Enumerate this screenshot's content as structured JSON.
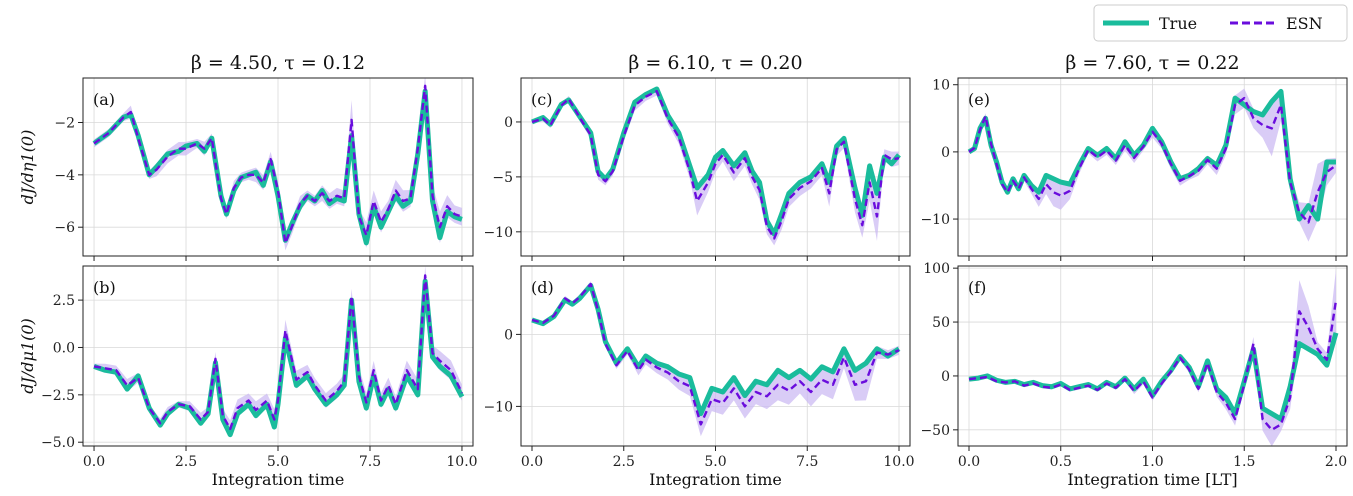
{
  "legend": {
    "entries": [
      {
        "label": "True",
        "color": "#1ABC9C",
        "style": "solid"
      },
      {
        "label": "ESN",
        "color": "#6A0DDD",
        "style": "dashed"
      }
    ],
    "placement": "top-right"
  },
  "colors": {
    "true": "#1ABC9C",
    "esn": "#6A0DDD",
    "band": "#C9B6F2",
    "grid": "#d9d9d9"
  },
  "row_ylabels": [
    "dJ/dη1(0)",
    "dJ/dμ1(0)"
  ],
  "chart_data": [
    {
      "type": "line",
      "id": "a",
      "panel_label": "(a)",
      "col": 0,
      "row": 0,
      "title": "β = 4.50,  τ = 0.12",
      "xlabel": "",
      "ylabel": "dJ/dη1(0)",
      "xlim": [
        -0.3,
        10.3
      ],
      "ylim": [
        -7.1,
        -0.3
      ],
      "xticks": [
        0,
        2.5,
        5,
        7.5,
        10
      ],
      "xtick_labels": [
        "",
        "",
        "",
        "",
        ""
      ],
      "yticks": [
        -6,
        -4,
        -2
      ],
      "ytick_labels": [
        "−6",
        "−4",
        "−2"
      ],
      "grid": true,
      "band_scale": 0.05,
      "x": [
        0,
        0.4,
        0.8,
        1.0,
        1.2,
        1.5,
        1.7,
        2.0,
        2.3,
        2.5,
        2.8,
        3.0,
        3.2,
        3.45,
        3.6,
        3.8,
        4.0,
        4.2,
        4.4,
        4.6,
        4.8,
        5.0,
        5.2,
        5.4,
        5.6,
        5.8,
        6.0,
        6.2,
        6.4,
        6.6,
        6.8,
        7.0,
        7.2,
        7.4,
        7.6,
        7.8,
        8.0,
        8.2,
        8.4,
        8.6,
        8.8,
        9.0,
        9.2,
        9.4,
        9.6,
        9.8,
        10.0
      ],
      "series": [
        {
          "name": "True",
          "values": [
            -2.8,
            -2.4,
            -1.8,
            -1.7,
            -2.5,
            -4.0,
            -3.7,
            -3.2,
            -3.1,
            -2.9,
            -2.8,
            -3.1,
            -2.6,
            -4.8,
            -5.5,
            -4.6,
            -4.1,
            -4.0,
            -3.9,
            -4.4,
            -3.5,
            -4.8,
            -6.5,
            -5.8,
            -5.2,
            -4.8,
            -5.0,
            -4.6,
            -5.1,
            -4.9,
            -5.0,
            -2.5,
            -5.5,
            -6.6,
            -5.2,
            -6.0,
            -5.4,
            -4.8,
            -5.2,
            -5.0,
            -3.2,
            -0.8,
            -5.0,
            -6.4,
            -5.4,
            -5.6,
            -5.7
          ]
        },
        {
          "name": "ESN",
          "values": [
            -2.8,
            -2.4,
            -1.8,
            -1.6,
            -2.6,
            -4.0,
            -3.8,
            -3.3,
            -3.0,
            -3.0,
            -2.8,
            -3.0,
            -2.6,
            -4.9,
            -5.5,
            -4.5,
            -4.1,
            -4.0,
            -4.0,
            -4.3,
            -3.4,
            -4.6,
            -6.6,
            -5.9,
            -5.1,
            -4.8,
            -5.0,
            -4.7,
            -5.0,
            -4.8,
            -4.9,
            -1.9,
            -5.6,
            -6.3,
            -5.0,
            -5.8,
            -5.3,
            -4.6,
            -5.0,
            -4.9,
            -3.0,
            -0.6,
            -4.8,
            -6.0,
            -5.2,
            -5.5,
            -5.6
          ]
        }
      ]
    },
    {
      "type": "line",
      "id": "c",
      "panel_label": "(c)",
      "col": 1,
      "row": 0,
      "title": "β = 6.10,  τ = 0.20",
      "xlabel": "",
      "ylabel": "",
      "xlim": [
        -0.3,
        10.3
      ],
      "ylim": [
        -12.2,
        4.0
      ],
      "xticks": [
        0,
        2.5,
        5,
        7.5,
        10
      ],
      "xtick_labels": [
        "",
        "",
        "",
        "",
        ""
      ],
      "yticks": [
        -10,
        -5,
        0
      ],
      "ytick_labels": [
        "−10",
        "−5",
        "0"
      ],
      "grid": true,
      "band_scale": 0.1,
      "x": [
        0,
        0.3,
        0.5,
        0.8,
        1.0,
        1.3,
        1.6,
        1.8,
        2.0,
        2.2,
        2.5,
        2.8,
        3.1,
        3.4,
        3.7,
        4.0,
        4.3,
        4.5,
        4.8,
        5.0,
        5.2,
        5.5,
        5.8,
        6.0,
        6.2,
        6.4,
        6.6,
        6.8,
        7.0,
        7.3,
        7.6,
        7.9,
        8.1,
        8.3,
        8.5,
        8.8,
        9.0,
        9.2,
        9.4,
        9.6,
        9.8,
        10.0
      ],
      "series": [
        {
          "name": "True",
          "values": [
            0.0,
            0.4,
            -0.2,
            1.6,
            2.0,
            0.5,
            -1.0,
            -4.5,
            -5.2,
            -4.3,
            -1.0,
            1.8,
            2.5,
            3.0,
            0.6,
            -1.0,
            -4.0,
            -6.0,
            -4.8,
            -3.2,
            -2.6,
            -4.0,
            -2.8,
            -4.5,
            -5.5,
            -9.0,
            -10.2,
            -8.4,
            -6.5,
            -5.5,
            -5.0,
            -3.8,
            -5.5,
            -2.2,
            -1.5,
            -6.0,
            -8.5,
            -4.0,
            -6.5,
            -3.2,
            -3.8,
            -3.0
          ]
        },
        {
          "name": "ESN",
          "values": [
            0.0,
            0.3,
            -0.3,
            1.5,
            2.1,
            0.4,
            -1.2,
            -4.8,
            -5.4,
            -4.5,
            -1.3,
            1.5,
            2.3,
            2.8,
            0.3,
            -1.4,
            -4.5,
            -7.2,
            -5.5,
            -3.8,
            -3.0,
            -4.6,
            -3.3,
            -5.0,
            -6.2,
            -9.5,
            -10.6,
            -9.0,
            -7.0,
            -6.0,
            -5.4,
            -4.2,
            -6.5,
            -2.5,
            -1.8,
            -7.0,
            -9.4,
            -5.5,
            -8.6,
            -3.0,
            -3.4,
            -3.3
          ]
        }
      ]
    },
    {
      "type": "line",
      "id": "e",
      "panel_label": "(e)",
      "col": 2,
      "row": 0,
      "title": "β = 7.60,  τ = 0.22",
      "xlabel": "",
      "ylabel": "",
      "xlim": [
        -0.06,
        2.06
      ],
      "ylim": [
        -15.5,
        11.0
      ],
      "xticks": [
        0,
        0.5,
        1.0,
        1.5,
        2.0
      ],
      "xtick_labels": [
        "",
        "",
        "",
        "",
        ""
      ],
      "yticks": [
        -10,
        0,
        10
      ],
      "ytick_labels": [
        "−10",
        "0",
        "10"
      ],
      "grid": true,
      "band_scale": 0.25,
      "x": [
        0,
        0.03,
        0.06,
        0.09,
        0.12,
        0.15,
        0.18,
        0.21,
        0.24,
        0.27,
        0.3,
        0.34,
        0.38,
        0.42,
        0.46,
        0.5,
        0.55,
        0.6,
        0.65,
        0.7,
        0.75,
        0.8,
        0.85,
        0.9,
        0.95,
        1.0,
        1.05,
        1.1,
        1.15,
        1.2,
        1.25,
        1.3,
        1.35,
        1.4,
        1.45,
        1.5,
        1.55,
        1.6,
        1.65,
        1.7,
        1.75,
        1.8,
        1.85,
        1.9,
        1.95,
        2.0
      ],
      "series": [
        {
          "name": "True",
          "values": [
            0.0,
            0.5,
            3.5,
            5.0,
            1.0,
            -1.5,
            -4.5,
            -6.0,
            -4.0,
            -5.5,
            -3.5,
            -5.0,
            -6.0,
            -3.5,
            -4.0,
            -4.5,
            -4.8,
            -2.0,
            0.5,
            -0.5,
            0.5,
            -1.0,
            1.5,
            -0.5,
            1.0,
            3.5,
            1.5,
            -1.5,
            -4.0,
            -3.5,
            -2.5,
            -1.0,
            -2.0,
            1.0,
            8.0,
            7.0,
            6.0,
            5.5,
            7.5,
            9.0,
            -4.0,
            -10.0,
            -8.0,
            -10.0,
            -1.5,
            -1.5
          ]
        },
        {
          "name": "ESN",
          "values": [
            0.0,
            0.6,
            3.3,
            5.3,
            1.2,
            -1.8,
            -4.8,
            -6.0,
            -4.3,
            -5.5,
            -3.8,
            -5.5,
            -7.0,
            -4.8,
            -6.0,
            -6.5,
            -5.8,
            -2.5,
            0.3,
            -0.8,
            0.2,
            -1.3,
            1.0,
            -0.9,
            0.8,
            3.0,
            1.2,
            -1.8,
            -4.3,
            -3.6,
            -2.8,
            -1.2,
            -2.5,
            0.5,
            7.0,
            8.0,
            5.0,
            4.0,
            3.5,
            7.0,
            -4.5,
            -9.0,
            -10.5,
            -6.0,
            -3.0,
            -2.0
          ]
        }
      ]
    },
    {
      "type": "line",
      "id": "b",
      "panel_label": "(b)",
      "col": 0,
      "row": 1,
      "title": "",
      "xlabel": "Integration time",
      "ylabel": "dJ/dμ1(0)",
      "xlim": [
        -0.3,
        10.3
      ],
      "ylim": [
        -5.2,
        4.3
      ],
      "xticks": [
        0,
        2.5,
        5,
        7.5,
        10
      ],
      "xtick_labels": [
        "0.0",
        "2.5",
        "5.0",
        "7.5",
        "10.0"
      ],
      "yticks": [
        -5.0,
        -2.5,
        0.0,
        2.5
      ],
      "ytick_labels": [
        "−5.0",
        "−2.5",
        "0.0",
        "2.5"
      ],
      "grid": true,
      "band_scale": 0.05,
      "x": [
        0,
        0.3,
        0.6,
        0.9,
        1.2,
        1.5,
        1.8,
        2.0,
        2.3,
        2.6,
        2.9,
        3.1,
        3.3,
        3.5,
        3.7,
        3.9,
        4.2,
        4.4,
        4.7,
        4.9,
        5.0,
        5.2,
        5.5,
        5.8,
        6.0,
        6.3,
        6.6,
        6.8,
        7.0,
        7.2,
        7.4,
        7.6,
        7.8,
        8.0,
        8.2,
        8.5,
        8.8,
        9.0,
        9.2,
        9.4,
        9.7,
        10.0
      ],
      "series": [
        {
          "name": "True",
          "values": [
            -1.0,
            -1.2,
            -1.3,
            -2.2,
            -1.5,
            -3.2,
            -4.1,
            -3.5,
            -3.0,
            -3.2,
            -4.0,
            -3.5,
            -0.8,
            -3.8,
            -4.6,
            -3.5,
            -3.0,
            -3.6,
            -3.0,
            -4.2,
            -3.0,
            0.5,
            -2.0,
            -1.5,
            -2.2,
            -3.0,
            -2.5,
            -2.0,
            2.5,
            -1.8,
            -3.2,
            -1.5,
            -3.0,
            -2.2,
            -3.2,
            -1.5,
            -2.5,
            3.5,
            -0.5,
            -1.0,
            -1.5,
            -2.6
          ]
        },
        {
          "name": "ESN",
          "values": [
            -1.0,
            -1.1,
            -1.2,
            -2.0,
            -1.6,
            -3.2,
            -4.0,
            -3.4,
            -3.0,
            -3.1,
            -3.8,
            -3.4,
            -0.6,
            -3.6,
            -4.3,
            -3.2,
            -2.8,
            -3.3,
            -2.8,
            -3.8,
            -2.8,
            0.9,
            -1.7,
            -1.3,
            -2.0,
            -2.8,
            -2.3,
            -1.8,
            2.7,
            -1.5,
            -2.9,
            -1.2,
            -2.8,
            -2.0,
            -3.0,
            -1.2,
            -2.2,
            3.8,
            -0.3,
            -0.7,
            -1.2,
            -2.4
          ]
        }
      ]
    },
    {
      "type": "line",
      "id": "d",
      "panel_label": "(d)",
      "col": 1,
      "row": 1,
      "title": "",
      "xlabel": "Integration time",
      "ylabel": "",
      "xlim": [
        -0.3,
        10.3
      ],
      "ylim": [
        -15.5,
        9.5
      ],
      "xticks": [
        0,
        2.5,
        5,
        7.5,
        10
      ],
      "xtick_labels": [
        "0.0",
        "2.5",
        "5.0",
        "7.5",
        "10.0"
      ],
      "yticks": [
        -10,
        0
      ],
      "ytick_labels": [
        "−10",
        "0"
      ],
      "grid": true,
      "band_scale": 0.15,
      "x": [
        0,
        0.3,
        0.6,
        0.9,
        1.1,
        1.3,
        1.6,
        1.8,
        2.0,
        2.3,
        2.6,
        2.9,
        3.1,
        3.4,
        3.7,
        4.0,
        4.3,
        4.6,
        4.9,
        5.2,
        5.5,
        5.8,
        6.1,
        6.4,
        6.7,
        7.0,
        7.3,
        7.6,
        7.9,
        8.2,
        8.5,
        8.8,
        9.1,
        9.4,
        9.7,
        10.0
      ],
      "series": [
        {
          "name": "True",
          "values": [
            2.0,
            1.5,
            2.5,
            4.8,
            4.2,
            5.0,
            6.8,
            3.5,
            -1.0,
            -4.0,
            -2.0,
            -4.5,
            -3.0,
            -4.0,
            -4.5,
            -5.5,
            -6.0,
            -11.0,
            -7.5,
            -8.0,
            -6.0,
            -8.5,
            -6.5,
            -7.0,
            -5.0,
            -6.0,
            -5.0,
            -6.2,
            -4.5,
            -5.2,
            -2.0,
            -5.0,
            -4.0,
            -2.0,
            -3.0,
            -2.0
          ]
        },
        {
          "name": "ESN",
          "values": [
            2.0,
            1.6,
            2.6,
            5.0,
            4.3,
            5.2,
            7.0,
            3.3,
            -1.3,
            -4.3,
            -2.3,
            -5.0,
            -3.5,
            -4.6,
            -5.3,
            -6.5,
            -7.2,
            -12.5,
            -9.0,
            -9.5,
            -7.5,
            -10.0,
            -8.0,
            -8.6,
            -7.0,
            -7.8,
            -6.5,
            -8.0,
            -6.3,
            -7.0,
            -3.2,
            -7.0,
            -6.5,
            -2.5,
            -2.8,
            -2.2
          ]
        }
      ]
    },
    {
      "type": "line",
      "id": "f",
      "panel_label": "(f)",
      "col": 2,
      "row": 1,
      "title": "",
      "xlabel": "Integration time [LT]",
      "ylabel": "",
      "xlim": [
        -0.06,
        2.06
      ],
      "ylim": [
        -65,
        102
      ],
      "xticks": [
        0,
        0.5,
        1.0,
        1.5,
        2.0
      ],
      "xtick_labels": [
        "0.0",
        "0.5",
        "1.0",
        "1.5",
        "2.0"
      ],
      "yticks": [
        -50,
        0,
        50,
        100
      ],
      "ytick_labels": [
        "−50",
        "0",
        "50",
        "100"
      ],
      "grid": true,
      "band_scale": 1.0,
      "x": [
        0,
        0.05,
        0.1,
        0.15,
        0.2,
        0.25,
        0.3,
        0.35,
        0.4,
        0.45,
        0.5,
        0.55,
        0.6,
        0.65,
        0.7,
        0.75,
        0.8,
        0.85,
        0.9,
        0.95,
        1.0,
        1.05,
        1.1,
        1.15,
        1.2,
        1.25,
        1.3,
        1.35,
        1.4,
        1.45,
        1.5,
        1.55,
        1.6,
        1.65,
        1.7,
        1.75,
        1.8,
        1.85,
        1.9,
        1.95,
        2.0
      ],
      "series": [
        {
          "name": "True",
          "values": [
            -3,
            -2,
            0,
            -4,
            -6,
            -5,
            -8,
            -6,
            -9,
            -10,
            -7,
            -12,
            -10,
            -8,
            -12,
            -6,
            -10,
            -2,
            -12,
            -3,
            -18,
            -5,
            5,
            18,
            8,
            -10,
            14,
            -12,
            -20,
            -35,
            -5,
            25,
            -30,
            -35,
            -40,
            -10,
            30,
            25,
            20,
            10,
            40
          ]
        },
        {
          "name": "ESN",
          "values": [
            -3,
            -2,
            -1,
            -5,
            -6,
            -5,
            -9,
            -7,
            -10,
            -11,
            -8,
            -13,
            -11,
            -9,
            -13,
            -7,
            -11,
            -3,
            -14,
            -5,
            -20,
            -7,
            4,
            17,
            6,
            -12,
            12,
            -15,
            -25,
            -40,
            -8,
            30,
            -40,
            -50,
            -45,
            -20,
            60,
            45,
            25,
            15,
            70
          ]
        }
      ]
    }
  ]
}
